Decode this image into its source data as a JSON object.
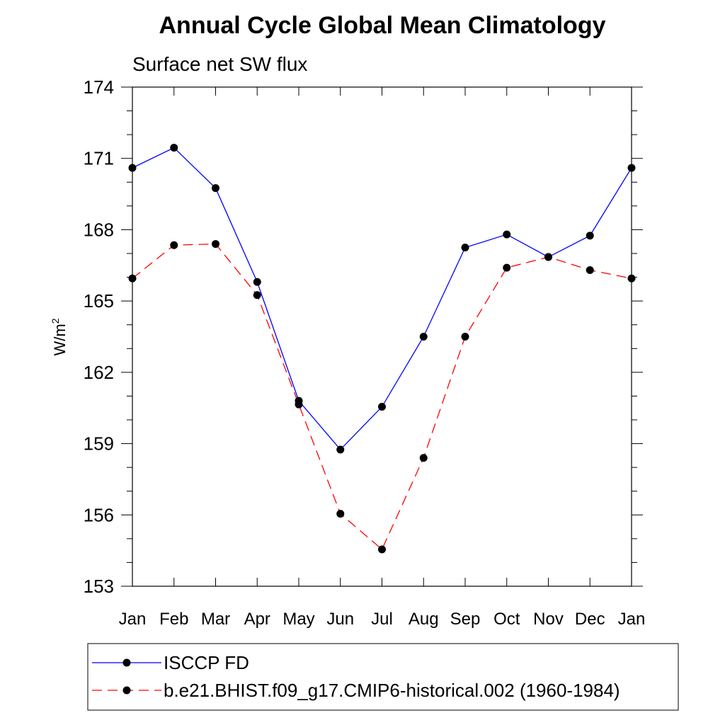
{
  "chart_data": {
    "type": "line",
    "title": "Annual Cycle Global Mean Climatology",
    "subtitle": "Surface net SW flux",
    "ylabel": "W/m",
    "ylabel_superscript": "2",
    "xlabel": "",
    "categories": [
      "Jan",
      "Feb",
      "Mar",
      "Apr",
      "May",
      "Jun",
      "Jul",
      "Aug",
      "Sep",
      "Oct",
      "Nov",
      "Dec",
      "Jan"
    ],
    "ylim": [
      153,
      174
    ],
    "yticks": [
      153,
      156,
      159,
      162,
      165,
      168,
      171,
      174
    ],
    "grid": false,
    "legend_position": "bottom",
    "series": [
      {
        "name": "ISCCP FD",
        "color": "#0000ff",
        "style": "solid",
        "values": [
          170.6,
          171.45,
          169.75,
          165.8,
          160.8,
          158.75,
          160.55,
          163.5,
          167.25,
          167.8,
          166.85,
          167.75,
          170.6
        ]
      },
      {
        "name": "b.e21.BHIST.f09_g17.CMIP6-historical.002 (1960-1984)",
        "color": "#ff0000",
        "style": "dashed",
        "values": [
          165.95,
          167.35,
          167.4,
          165.25,
          160.65,
          156.05,
          154.55,
          158.4,
          163.5,
          166.4,
          166.85,
          166.3,
          165.95
        ]
      }
    ]
  }
}
